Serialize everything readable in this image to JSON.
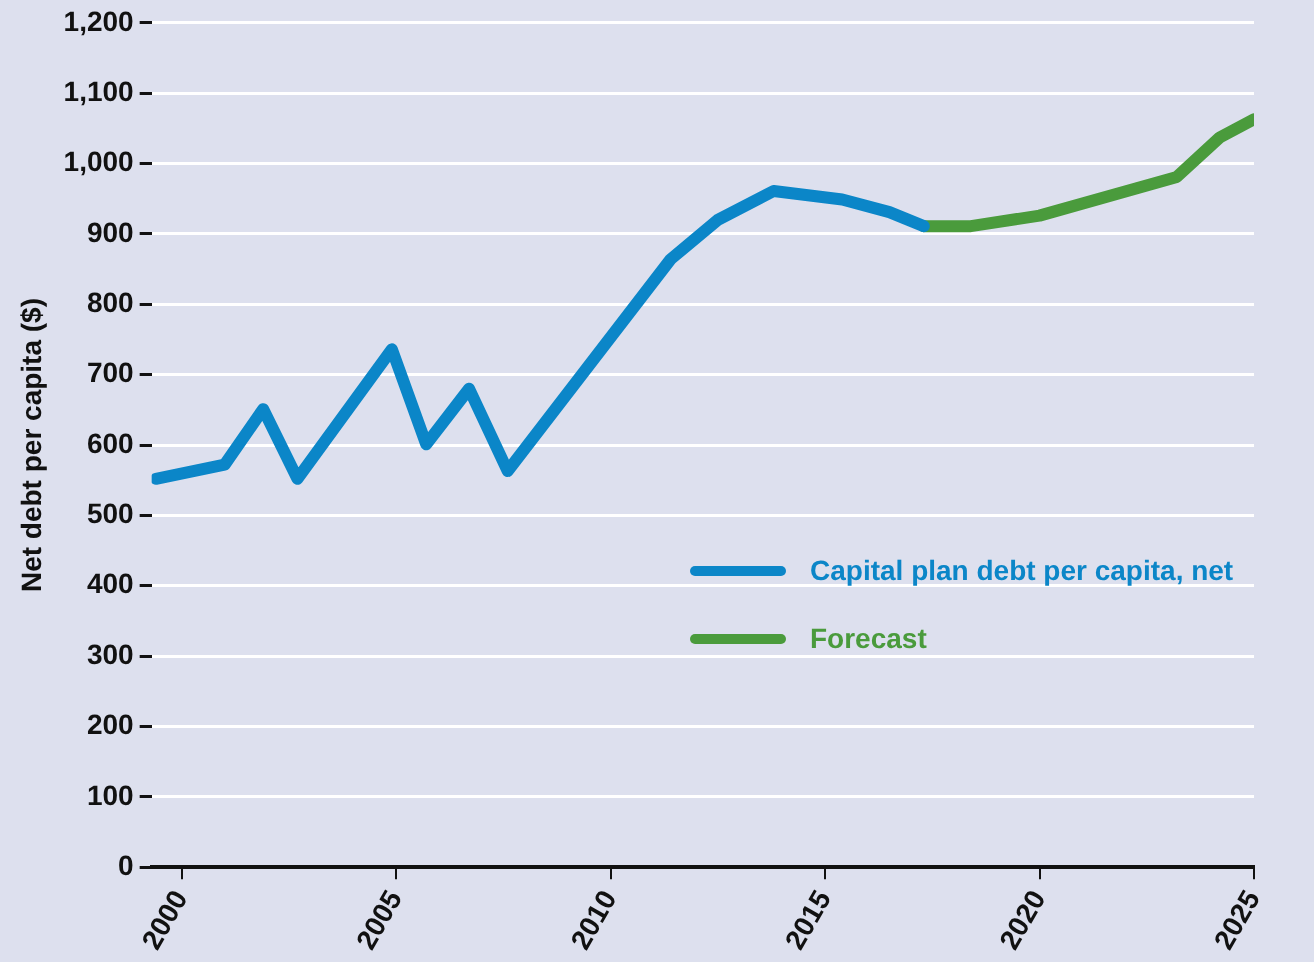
{
  "chart_data": {
    "type": "line",
    "ylabel": "Net debt per capita ($)",
    "xlim": [
      1999.3,
      2025
    ],
    "xticks": [
      2000,
      2005,
      2010,
      2015,
      2020,
      2025
    ],
    "ylim": [
      0,
      1200
    ],
    "yticks": [
      0,
      100,
      200,
      300,
      400,
      500,
      600,
      700,
      800,
      900,
      {
        "value": 1000,
        "label": "1,000"
      },
      {
        "value": 1100,
        "label": "1,100"
      },
      {
        "value": 1200,
        "label": "1,200"
      }
    ],
    "grid": "y",
    "legend": "right",
    "marker": "none",
    "line_style": "solid",
    "series": [
      {
        "name": "Capital plan debt per capita, net",
        "color": "#0b86c8",
        "x": [
          1999.4,
          2001.0,
          2001.9,
          2002.7,
          2004.9,
          2005.7,
          2006.7,
          2007.6,
          2011.4,
          2012.5,
          2013.8,
          2015.4,
          2016.5,
          2017.3
        ],
        "values": [
          552,
          572,
          651,
          552,
          736,
          601,
          680,
          563,
          864,
          920,
          961,
          949,
          931,
          911
        ]
      },
      {
        "name": "Forecast",
        "color": "#4a9b3c",
        "x": [
          2017.3,
          2018.4,
          2020.0,
          2023.2,
          2024.2,
          2025.0
        ],
        "values": [
          911,
          911,
          926,
          981,
          1037,
          1063
        ]
      }
    ]
  }
}
